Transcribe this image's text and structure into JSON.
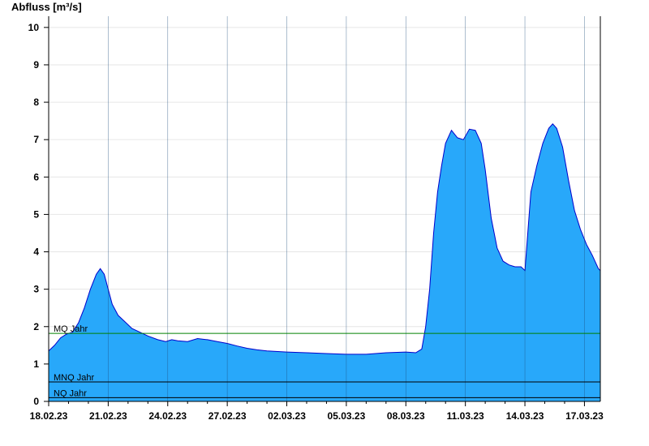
{
  "chart_data": {
    "type": "area",
    "ylabel": "Abfluss [m³/s]",
    "ylim": [
      0,
      10.3
    ],
    "yticks": [
      0,
      1,
      2,
      3,
      4,
      5,
      6,
      7,
      8,
      9,
      10
    ],
    "xlim_days": [
      0,
      27.8
    ],
    "xticks": [
      {
        "day": 0,
        "label": "18.02.23"
      },
      {
        "day": 3,
        "label": "21.02.23"
      },
      {
        "day": 6,
        "label": "24.02.23"
      },
      {
        "day": 9,
        "label": "27.02.23"
      },
      {
        "day": 12,
        "label": "02.03.23"
      },
      {
        "day": 15,
        "label": "05.03.23"
      },
      {
        "day": 18,
        "label": "08.03.23"
      },
      {
        "day": 21,
        "label": "11.03.23"
      },
      {
        "day": 24,
        "label": "14.03.23"
      },
      {
        "day": 27,
        "label": "17.03.23"
      }
    ],
    "series": [
      {
        "color": "#28a8fa",
        "line_color": "#0000cc",
        "x": [
          0,
          0.3,
          0.6,
          0.9,
          1.2,
          1.5,
          1.8,
          2.1,
          2.4,
          2.6,
          2.8,
          3.0,
          3.2,
          3.5,
          3.8,
          4.2,
          4.6,
          5.0,
          5.5,
          5.9,
          6.2,
          6.5,
          7.0,
          7.5,
          8.0,
          8.5,
          9.0,
          9.5,
          10.0,
          10.5,
          11.0,
          12.0,
          13.0,
          14.0,
          15.0,
          16.0,
          17.0,
          18.0,
          18.5,
          18.8,
          19.0,
          19.2,
          19.4,
          19.6,
          19.8,
          20.0,
          20.3,
          20.6,
          20.9,
          21.2,
          21.5,
          21.8,
          22.0,
          22.3,
          22.6,
          22.9,
          23.2,
          23.5,
          23.8,
          24.0,
          24.3,
          24.6,
          24.9,
          25.2,
          25.4,
          25.6,
          25.9,
          26.2,
          26.5,
          26.8,
          27.1,
          27.4,
          27.7,
          27.8
        ],
        "values": [
          1.35,
          1.5,
          1.7,
          1.8,
          1.85,
          2.1,
          2.5,
          3.0,
          3.4,
          3.55,
          3.4,
          3.0,
          2.6,
          2.3,
          2.15,
          1.95,
          1.85,
          1.75,
          1.65,
          1.6,
          1.65,
          1.62,
          1.6,
          1.68,
          1.65,
          1.6,
          1.55,
          1.48,
          1.42,
          1.38,
          1.35,
          1.32,
          1.3,
          1.28,
          1.26,
          1.26,
          1.3,
          1.32,
          1.3,
          1.4,
          2.0,
          3.0,
          4.5,
          5.6,
          6.3,
          6.9,
          7.25,
          7.05,
          7.0,
          7.28,
          7.25,
          6.9,
          6.2,
          4.9,
          4.1,
          3.75,
          3.65,
          3.6,
          3.6,
          3.5,
          5.6,
          6.3,
          6.9,
          7.3,
          7.42,
          7.3,
          6.8,
          5.9,
          5.1,
          4.6,
          4.2,
          3.9,
          3.55,
          3.5
        ]
      }
    ],
    "reference_lines": [
      {
        "label": "MQ Jahr",
        "value": 1.82,
        "color": "#008000"
      },
      {
        "label": "MNQ Jahr",
        "value": 0.52,
        "color": "#000000"
      },
      {
        "label": "NQ Jahr",
        "value": 0.1,
        "color": "#000000"
      }
    ],
    "grid": true
  }
}
